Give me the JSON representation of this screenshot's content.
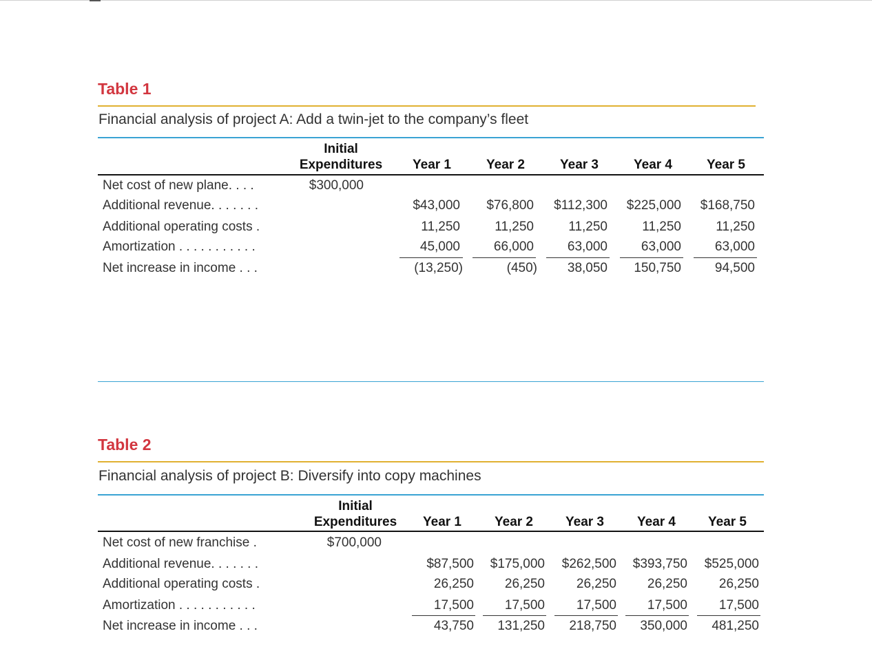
{
  "table1": {
    "label": "Table 1",
    "caption": "Financial analysis of project A: Add a twin-jet to the company’s fleet",
    "header_initial_1": "Initial",
    "header_initial_2": "Expenditures",
    "years": [
      "Year 1",
      "Year 2",
      "Year 3",
      "Year 4",
      "Year 5"
    ],
    "rows": [
      {
        "label": "Net cost of new plane. . . .",
        "initial": "$300,000",
        "values": [
          "",
          "",
          "",
          "",
          ""
        ]
      },
      {
        "label": "Additional revenue. . . . . . .",
        "initial": "",
        "values": [
          "$43,000",
          "$76,800",
          "$112,300",
          "$225,000",
          "$168,750"
        ]
      },
      {
        "label": "Additional operating costs .",
        "initial": "",
        "values": [
          "11,250",
          "11,250",
          "11,250",
          "11,250",
          "11,250"
        ]
      },
      {
        "label": "Amortization . . . . . . . . . . .",
        "initial": "",
        "values": [
          "45,000",
          "66,000",
          "63,000",
          "63,000",
          "63,000"
        ]
      },
      {
        "label": "Net increase in income . . .",
        "initial": "",
        "values": [
          "(13,250)",
          "(450)",
          "38,050",
          "150,750",
          "94,500"
        ]
      }
    ]
  },
  "table2": {
    "label": "Table 2",
    "caption": "Financial analysis of project B: Diversify into copy machines",
    "header_initial_1": "Initial",
    "header_initial_2": "Expenditures",
    "years": [
      "Year 1",
      "Year 2",
      "Year 3",
      "Year 4",
      "Year 5"
    ],
    "rows": [
      {
        "label": "Net cost of new franchise .",
        "initial": "$700,000",
        "values": [
          "",
          "",
          "",
          "",
          ""
        ]
      },
      {
        "label": "Additional revenue. . . . . . .",
        "initial": "",
        "values": [
          "$87,500",
          "$175,000",
          "$262,500",
          "$393,750",
          "$525,000"
        ]
      },
      {
        "label": "Additional operating costs .",
        "initial": "",
        "values": [
          "26,250",
          "26,250",
          "26,250",
          "26,250",
          "26,250"
        ]
      },
      {
        "label": "Amortization . . . . . . . . . . .",
        "initial": "",
        "values": [
          "17,500",
          "17,500",
          "17,500",
          "17,500",
          "17,500"
        ]
      },
      {
        "label": "Net increase in income . . .",
        "initial": "",
        "values": [
          "43,750",
          "131,250",
          "218,750",
          "350,000",
          "481,250"
        ]
      }
    ]
  }
}
